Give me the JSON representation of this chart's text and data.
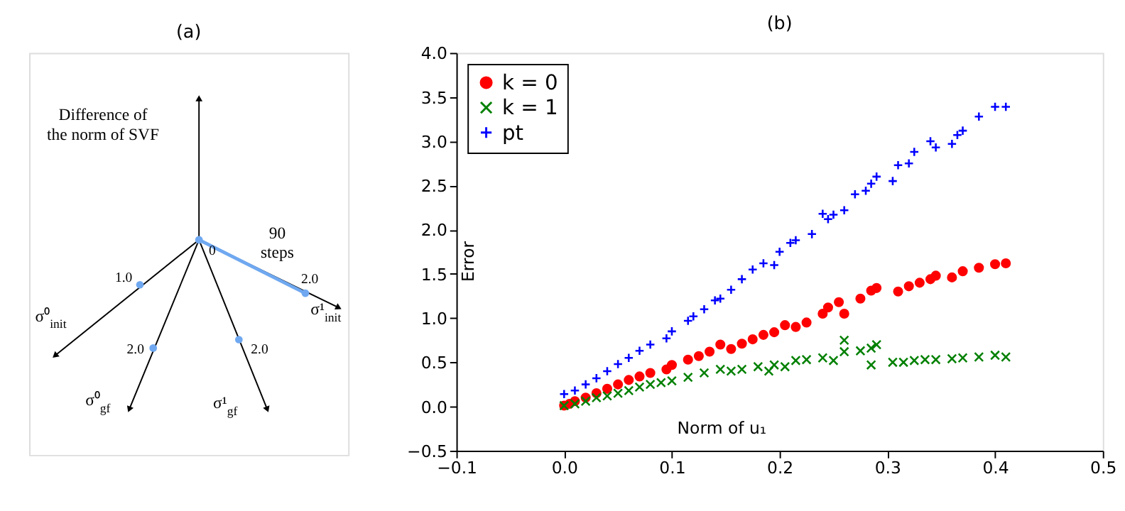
{
  "chart_data": [
    {
      "type": "other",
      "title": "(a)",
      "annotations": [
        "Difference of\nthe norm of SVF",
        "0",
        "90\nsteps",
        "1.0",
        "2.0",
        "2.0",
        "2.0",
        "σ⁰$_{init}$",
        "σ¹$_{init}$",
        "σ⁰$_{gf}$",
        "σ¹$_{gf}$"
      ]
    },
    {
      "type": "scatter",
      "title": "(b)",
      "xlabel": "Norm of u₁",
      "ylabel": "Error",
      "legend": "top left",
      "xlim": [
        -0.1,
        0.5
      ],
      "ylim": [
        -0.5,
        4.0
      ],
      "xticks": [
        {
          "value": -0.1,
          "label": "−0.1"
        },
        {
          "value": 0,
          "label": "0.0"
        },
        0.1,
        0.2,
        0.3,
        0.4,
        0.5
      ],
      "tick_labels": true,
      "yticks": [
        {
          "value": -0.5,
          "label": "−0.5"
        },
        {
          "value": 0,
          "label": "0.0"
        },
        0.5,
        {
          "value": 1,
          "label": "1.0"
        },
        1.5,
        {
          "value": 2,
          "label": "2.0"
        },
        2.5,
        {
          "value": 3,
          "label": "3.0"
        },
        3.5,
        {
          "value": 4,
          "label": "4.0"
        }
      ],
      "series": [
        {
          "name": "k = 0",
          "color": "#ff0000",
          "marker": "circle",
          "x": [
            0,
            0.005,
            0.01,
            0.02,
            0.03,
            0.04,
            0.05,
            0.06,
            0.07,
            0.08,
            0.095,
            0.1,
            0.115,
            0.125,
            0.135,
            0.145,
            0.155,
            0.165,
            0.175,
            0.185,
            0.195,
            0.205,
            0.215,
            0.225,
            0.24,
            0.245,
            0.255,
            0.26,
            0.275,
            0.285,
            0.29,
            0.31,
            0.32,
            0.33,
            0.34,
            0.345,
            0.36,
            0.37,
            0.385,
            0.4,
            0.41
          ],
          "values": [
            0.01,
            0.03,
            0.06,
            0.1,
            0.15,
            0.2,
            0.25,
            0.3,
            0.34,
            0.38,
            0.42,
            0.47,
            0.53,
            0.57,
            0.62,
            0.7,
            0.65,
            0.71,
            0.76,
            0.81,
            0.84,
            0.92,
            0.9,
            0.95,
            1.05,
            1.12,
            1.18,
            1.05,
            1.22,
            1.31,
            1.34,
            1.3,
            1.36,
            1.4,
            1.44,
            1.48,
            1.46,
            1.53,
            1.57,
            1.61,
            1.62
          ]
        },
        {
          "name": "k = 1",
          "color": "#008000",
          "marker": "cross",
          "x": [
            0,
            0.01,
            0.02,
            0.03,
            0.04,
            0.05,
            0.06,
            0.07,
            0.08,
            0.09,
            0.1,
            0.115,
            0.13,
            0.145,
            0.155,
            0.165,
            0.18,
            0.19,
            0.195,
            0.205,
            0.215,
            0.225,
            0.24,
            0.25,
            0.26,
            0.26,
            0.275,
            0.285,
            0.29,
            0.285,
            0.305,
            0.315,
            0.325,
            0.335,
            0.345,
            0.36,
            0.37,
            0.385,
            0.4,
            0.41
          ],
          "values": [
            0.01,
            0.03,
            0.06,
            0.1,
            0.12,
            0.15,
            0.18,
            0.22,
            0.25,
            0.27,
            0.29,
            0.33,
            0.38,
            0.42,
            0.4,
            0.42,
            0.45,
            0.4,
            0.47,
            0.45,
            0.52,
            0.53,
            0.55,
            0.52,
            0.75,
            0.62,
            0.63,
            0.66,
            0.7,
            0.47,
            0.5,
            0.5,
            0.52,
            0.53,
            0.53,
            0.54,
            0.55,
            0.56,
            0.58,
            0.56
          ]
        },
        {
          "name": "pt",
          "color": "#0000ff",
          "marker": "plus",
          "x": [
            0,
            0.01,
            0.02,
            0.03,
            0.04,
            0.05,
            0.06,
            0.07,
            0.08,
            0.095,
            0.1,
            0.115,
            0.12,
            0.13,
            0.14,
            0.145,
            0.155,
            0.165,
            0.175,
            0.185,
            0.195,
            0.2,
            0.21,
            0.215,
            0.23,
            0.24,
            0.245,
            0.25,
            0.26,
            0.27,
            0.28,
            0.285,
            0.29,
            0.305,
            0.31,
            0.32,
            0.325,
            0.34,
            0.345,
            0.36,
            0.365,
            0.37,
            0.385,
            0.4,
            0.41
          ],
          "values": [
            0.14,
            0.18,
            0.25,
            0.32,
            0.4,
            0.48,
            0.55,
            0.63,
            0.7,
            0.77,
            0.85,
            0.97,
            1.02,
            1.1,
            1.2,
            1.22,
            1.32,
            1.44,
            1.55,
            1.62,
            1.6,
            1.75,
            1.85,
            1.88,
            1.95,
            2.18,
            2.12,
            2.17,
            2.22,
            2.4,
            2.44,
            2.52,
            2.6,
            2.55,
            2.73,
            2.75,
            2.88,
            3.0,
            2.93,
            2.97,
            3.07,
            3.12,
            3.28,
            3.39,
            3.39
          ]
        }
      ]
    }
  ]
}
